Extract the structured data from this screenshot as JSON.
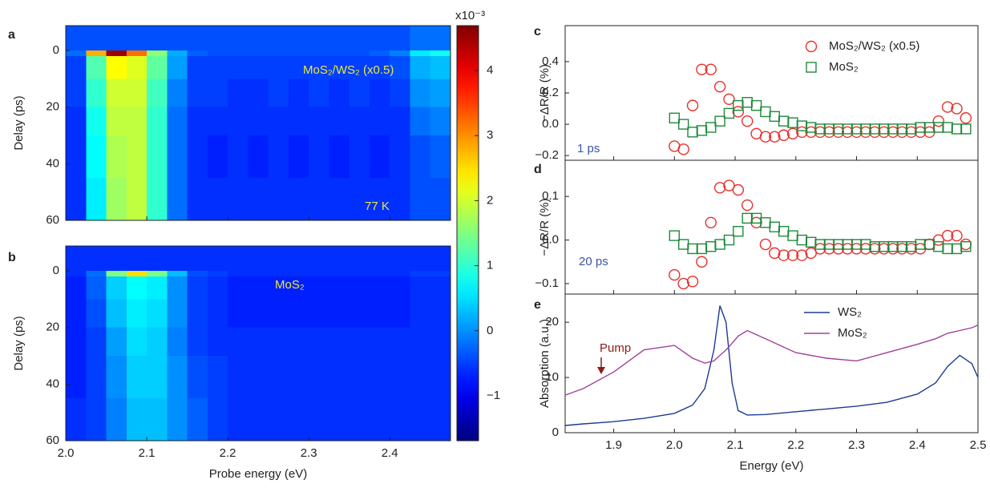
{
  "chart_data": [
    {
      "type": "heatmap",
      "panel": "a",
      "y_label": "Delay (ps)",
      "annotations": [
        "MoS₂/WS₂ (x0.5)",
        "77 K"
      ],
      "xlim": [
        2.0,
        2.475
      ],
      "ylim": [
        60,
        -8.8
      ],
      "xticks": [
        2.0,
        2.1,
        2.2,
        2.3,
        2.4
      ],
      "show_xtick_labels": false,
      "yticks": [
        0,
        20,
        40,
        60
      ],
      "clim": [
        -1.69,
        4.69
      ],
      "cticks": [
        {
          "value": -1,
          "label": "−1"
        },
        0,
        1,
        2,
        3,
        4
      ],
      "colorbar_label": "x10⁻³",
      "x_edges": [
        2.0,
        2.025,
        2.05,
        2.075,
        2.1,
        2.125,
        2.15,
        2.175,
        2.2,
        2.225,
        2.25,
        2.275,
        2.3,
        2.325,
        2.35,
        2.375,
        2.4,
        2.425,
        2.45,
        2.475
      ],
      "y_edges": [
        -8.8,
        0,
        2,
        10,
        20,
        30,
        45,
        60
      ],
      "z": [
        [
          -0.4,
          -0.4,
          -0.4,
          -0.4,
          -0.4,
          -0.4,
          -0.4,
          -0.4,
          -0.4,
          -0.4,
          -0.4,
          -0.4,
          -0.4,
          -0.4,
          -0.4,
          -0.4,
          -0.4,
          -0.2,
          -0.2
        ],
        [
          -0.2,
          2.8,
          4.5,
          3.2,
          1.6,
          0.2,
          -0.3,
          -0.4,
          -0.4,
          -0.4,
          -0.4,
          -0.4,
          -0.4,
          -0.4,
          -0.4,
          -0.3,
          -0.1,
          0.6,
          0.8
        ],
        [
          -0.5,
          1.2,
          2.3,
          2.1,
          1.3,
          0.1,
          -0.5,
          -0.5,
          -0.5,
          -0.5,
          -0.5,
          -0.5,
          -0.5,
          -0.5,
          -0.5,
          -0.5,
          -0.4,
          0.2,
          0.3
        ],
        [
          -0.5,
          1.0,
          2.0,
          2.0,
          1.1,
          -0.1,
          -0.5,
          -0.5,
          -0.6,
          -0.6,
          -0.5,
          -0.6,
          -0.5,
          -0.6,
          -0.5,
          -0.6,
          -0.5,
          0.0,
          0.1
        ],
        [
          -0.6,
          0.8,
          1.9,
          1.9,
          1.0,
          -0.2,
          -0.6,
          -0.6,
          -0.6,
          -0.6,
          -0.6,
          -0.6,
          -0.6,
          -0.6,
          -0.6,
          -0.6,
          -0.6,
          -0.2,
          -0.1
        ],
        [
          -0.6,
          0.7,
          1.8,
          1.9,
          1.0,
          -0.2,
          -0.6,
          -0.7,
          -0.6,
          -0.7,
          -0.6,
          -0.7,
          -0.6,
          -0.7,
          -0.6,
          -0.7,
          -0.6,
          -0.4,
          -0.3
        ],
        [
          -0.6,
          0.6,
          1.7,
          1.9,
          1.0,
          -0.2,
          -0.6,
          -0.6,
          -0.6,
          -0.6,
          -0.6,
          -0.6,
          -0.6,
          -0.6,
          -0.6,
          -0.6,
          -0.6,
          -0.4,
          -0.4
        ]
      ]
    },
    {
      "type": "heatmap",
      "panel": "b",
      "y_label": "Delay (ps)",
      "x_label": "Probe energy (eV)",
      "annotations": [
        "MoS₂"
      ],
      "xlim": [
        2.0,
        2.475
      ],
      "ylim": [
        60,
        -8.8
      ],
      "xticks": [
        {
          "value": 2.0,
          "label": "2.0"
        },
        2.1,
        2.2,
        2.3,
        2.4
      ],
      "yticks": [
        0,
        20,
        40,
        60
      ],
      "x_edges": [
        2.0,
        2.025,
        2.05,
        2.075,
        2.1,
        2.125,
        2.15,
        2.175,
        2.2,
        2.225,
        2.25,
        2.275,
        2.3,
        2.325,
        2.35,
        2.375,
        2.4,
        2.425,
        2.45,
        2.475
      ],
      "y_edges": [
        -8.8,
        0,
        2,
        10,
        20,
        30,
        45,
        60
      ],
      "z": [
        [
          -0.6,
          -0.6,
          -0.6,
          -0.6,
          -0.6,
          -0.6,
          -0.6,
          -0.6,
          -0.6,
          -0.6,
          -0.6,
          -0.6,
          -0.6,
          -0.6,
          -0.6,
          -0.6,
          -0.6,
          -0.6,
          -0.6
        ],
        [
          -0.6,
          -0.2,
          1.5,
          2.5,
          1.5,
          0.3,
          -0.4,
          -0.5,
          -0.6,
          -0.6,
          -0.6,
          -0.6,
          -0.6,
          -0.6,
          -0.6,
          -0.6,
          -0.6,
          -0.5,
          -0.5
        ],
        [
          -0.7,
          -0.3,
          0.4,
          0.7,
          0.6,
          0.0,
          -0.5,
          -0.6,
          -0.7,
          -0.7,
          -0.7,
          -0.7,
          -0.7,
          -0.7,
          -0.7,
          -0.7,
          -0.7,
          -0.6,
          -0.6
        ],
        [
          -0.7,
          -0.4,
          0.3,
          0.6,
          0.5,
          0.0,
          -0.5,
          -0.6,
          -0.7,
          -0.7,
          -0.7,
          -0.7,
          -0.7,
          -0.7,
          -0.7,
          -0.7,
          -0.7,
          -0.6,
          -0.6
        ],
        [
          -0.7,
          -0.5,
          0.1,
          0.5,
          0.4,
          -0.1,
          -0.5,
          -0.6,
          -0.6,
          -0.6,
          -0.6,
          -0.6,
          -0.6,
          -0.6,
          -0.6,
          -0.6,
          -0.6,
          -0.6,
          -0.6
        ],
        [
          -0.7,
          -0.5,
          0.0,
          0.4,
          0.4,
          0.0,
          -0.4,
          -0.5,
          -0.6,
          -0.6,
          -0.6,
          -0.6,
          -0.6,
          -0.6,
          -0.6,
          -0.6,
          -0.6,
          -0.6,
          -0.6
        ],
        [
          -0.6,
          -0.5,
          -0.1,
          0.3,
          0.3,
          0.0,
          -0.3,
          -0.5,
          -0.6,
          -0.6,
          -0.6,
          -0.6,
          -0.6,
          -0.6,
          -0.6,
          -0.6,
          -0.6,
          -0.6,
          -0.6
        ]
      ]
    },
    {
      "type": "scatter",
      "panel": "c",
      "y_label": "−ΔR/R (%)",
      "annotations": [
        "1 ps"
      ],
      "xlim": [
        1.82,
        2.5
      ],
      "ylim": [
        -0.23,
        0.63
      ],
      "xticks": [
        1.9,
        2.0,
        2.1,
        2.2,
        2.3,
        2.4,
        2.5
      ],
      "show_xtick_labels": false,
      "yticks": [
        0.4,
        0.2,
        {
          "value": 0,
          "label": "0.0"
        },
        {
          "value": -0.2,
          "label": "−0.2"
        }
      ],
      "x": [
        2.0,
        2.015,
        2.03,
        2.045,
        2.06,
        2.075,
        2.09,
        2.105,
        2.12,
        2.135,
        2.15,
        2.165,
        2.18,
        2.195,
        2.21,
        2.225,
        2.24,
        2.255,
        2.27,
        2.285,
        2.3,
        2.315,
        2.33,
        2.345,
        2.36,
        2.375,
        2.39,
        2.405,
        2.42,
        2.435,
        2.45,
        2.465,
        2.48
      ],
      "series": [
        {
          "name": "MoS₂/WS₂ (x0.5)",
          "color": "#e8302a",
          "marker": "circle",
          "values": [
            -0.14,
            -0.16,
            0.12,
            0.35,
            0.35,
            0.24,
            0.16,
            0.08,
            0.02,
            -0.06,
            -0.08,
            -0.08,
            -0.07,
            -0.06,
            -0.05,
            -0.05,
            -0.05,
            -0.05,
            -0.05,
            -0.05,
            -0.05,
            -0.05,
            -0.05,
            -0.05,
            -0.05,
            -0.05,
            -0.05,
            -0.05,
            -0.05,
            0.02,
            0.11,
            0.1,
            0.04
          ]
        },
        {
          "name": "MoS₂",
          "color": "#1f8a3c",
          "marker": "square",
          "values": [
            0.04,
            0.0,
            -0.05,
            -0.04,
            -0.02,
            0.02,
            0.07,
            0.12,
            0.14,
            0.12,
            0.08,
            0.05,
            0.02,
            0.01,
            -0.01,
            -0.02,
            -0.03,
            -0.03,
            -0.03,
            -0.03,
            -0.03,
            -0.03,
            -0.03,
            -0.03,
            -0.03,
            -0.03,
            -0.03,
            -0.02,
            -0.02,
            -0.02,
            -0.02,
            -0.03,
            -0.03
          ]
        }
      ]
    },
    {
      "type": "scatter",
      "panel": "d",
      "y_label": "−ΔR/R (%)",
      "annotations": [
        "20 ps"
      ],
      "xlim": [
        1.82,
        2.5
      ],
      "ylim": [
        -0.124,
        0.183
      ],
      "xticks": [
        1.9,
        2.0,
        2.1,
        2.2,
        2.3,
        2.4,
        2.5
      ],
      "show_xtick_labels": false,
      "yticks": [
        0.1,
        {
          "value": 0,
          "label": "0.0"
        },
        {
          "value": -0.1,
          "label": "−0.1"
        }
      ],
      "x": [
        2.0,
        2.015,
        2.03,
        2.045,
        2.06,
        2.075,
        2.09,
        2.105,
        2.12,
        2.135,
        2.15,
        2.165,
        2.18,
        2.195,
        2.21,
        2.225,
        2.24,
        2.255,
        2.27,
        2.285,
        2.3,
        2.315,
        2.33,
        2.345,
        2.36,
        2.375,
        2.39,
        2.405,
        2.42,
        2.435,
        2.45,
        2.465,
        2.48
      ],
      "series": [
        {
          "color": "#e8302a",
          "marker": "circle",
          "values": [
            -0.08,
            -0.1,
            -0.095,
            -0.05,
            0.04,
            0.12,
            0.125,
            0.115,
            0.08,
            0.04,
            -0.01,
            -0.03,
            -0.035,
            -0.035,
            -0.035,
            -0.03,
            -0.02,
            -0.02,
            -0.02,
            -0.02,
            -0.02,
            -0.02,
            -0.02,
            -0.02,
            -0.02,
            -0.02,
            -0.02,
            -0.02,
            -0.01,
            0.0,
            0.01,
            0.01,
            -0.01
          ]
        },
        {
          "color": "#1f8a3c",
          "marker": "square",
          "values": [
            0.01,
            -0.01,
            -0.02,
            -0.02,
            -0.015,
            -0.01,
            0.0,
            0.02,
            0.05,
            0.05,
            0.04,
            0.03,
            0.02,
            0.01,
            0.0,
            -0.005,
            -0.01,
            -0.01,
            -0.01,
            -0.01,
            -0.01,
            -0.01,
            -0.015,
            -0.015,
            -0.015,
            -0.015,
            -0.015,
            -0.01,
            -0.01,
            -0.015,
            -0.02,
            -0.02,
            -0.015
          ]
        }
      ]
    },
    {
      "type": "line",
      "panel": "e",
      "y_label": "Absorption (a.u.)",
      "x_label": "Energy (eV)",
      "annotations": [
        "Pump"
      ],
      "xlim": [
        1.82,
        2.5
      ],
      "ylim": [
        0,
        25.1
      ],
      "xticks": [
        1.9,
        {
          "value": 2.0,
          "label": "2.0"
        },
        2.1,
        2.2,
        2.3,
        2.4,
        2.5
      ],
      "yticks": [
        0,
        10,
        20
      ],
      "x": [
        1.82,
        1.85,
        1.9,
        1.95,
        2.0,
        2.03,
        2.05,
        2.065,
        2.075,
        2.085,
        2.095,
        2.105,
        2.12,
        2.15,
        2.2,
        2.25,
        2.3,
        2.35,
        2.4,
        2.43,
        2.45,
        2.47,
        2.49,
        2.5
      ],
      "series": [
        {
          "name": "WS₂",
          "color": "#1f3a93",
          "values": [
            1.3,
            1.6,
            2.0,
            2.6,
            3.5,
            5,
            8,
            15,
            23,
            20,
            9,
            4,
            3.2,
            3.3,
            3.8,
            4.3,
            4.8,
            5.5,
            7,
            9,
            12,
            14,
            12.5,
            10
          ]
        },
        {
          "name": "MoS₂",
          "color": "#a0409a",
          "values": [
            6.8,
            8,
            11,
            15,
            15.8,
            13.5,
            12.6,
            13,
            14,
            15,
            16.2,
            17.5,
            18.5,
            17,
            14.5,
            13.5,
            13,
            14.5,
            16,
            17,
            18,
            18.5,
            19,
            19.5
          ]
        }
      ]
    }
  ]
}
